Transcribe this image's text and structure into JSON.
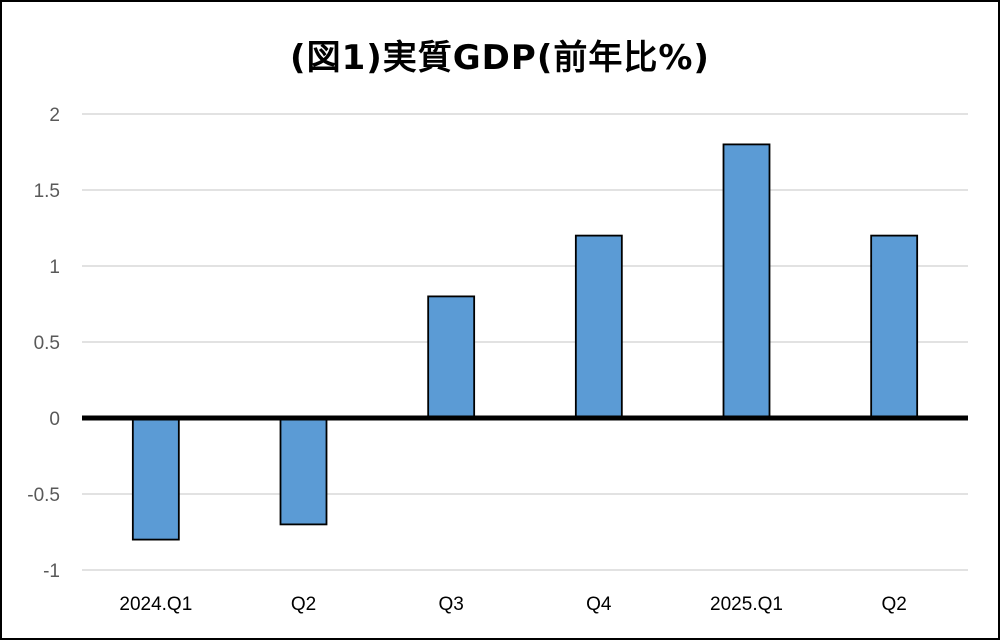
{
  "chart_data": {
    "type": "bar",
    "title": "(図1)実質GDP(前年比%)",
    "categories": [
      "2024.Q1",
      "Q2",
      "Q3",
      "Q4",
      "2025.Q1",
      "Q2"
    ],
    "values": [
      -0.8,
      -0.7,
      0.8,
      1.2,
      1.8,
      1.2
    ],
    "ylim": [
      -1,
      2
    ],
    "yticks": [
      2,
      1.5,
      1,
      0.5,
      0,
      -0.5,
      -1
    ],
    "ytick_labels": [
      "2",
      "1.5",
      "1",
      "0.5",
      "0",
      "-0.5",
      "-1"
    ],
    "grid": true,
    "legend": "none",
    "colors": {
      "bar": "#5B9BD5",
      "bar_edge": "#000000",
      "grid": "#D9D9D9",
      "zero_line": "#000000"
    }
  }
}
